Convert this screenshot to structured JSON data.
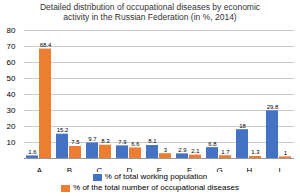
{
  "chart_data": {
    "type": "bar",
    "title": "Detailed distribution of occupational diseases by economic\nactivity in the Russian Federation (in %, 2014)",
    "categories": [
      "A",
      "B",
      "C",
      "D",
      "E",
      "F",
      "G",
      "H",
      "I"
    ],
    "series": [
      {
        "name": "% of total working population",
        "color": "#4472C4",
        "values": [
          1.6,
          15.2,
          9.7,
          7.9,
          8.1,
          2.9,
          6.8,
          18,
          29.8
        ]
      },
      {
        "name": "% of the total number of occupational diseases",
        "color": "#ED7D31",
        "values": [
          68.4,
          7.5,
          8.3,
          6.6,
          3,
          2.1,
          1.7,
          1.3,
          1
        ]
      }
    ],
    "ylim": [
      0,
      80
    ],
    "yticks": [
      10,
      20,
      30,
      40,
      50,
      60,
      70,
      80
    ],
    "grid": true,
    "data_labels": true,
    "legend": "bottom"
  }
}
